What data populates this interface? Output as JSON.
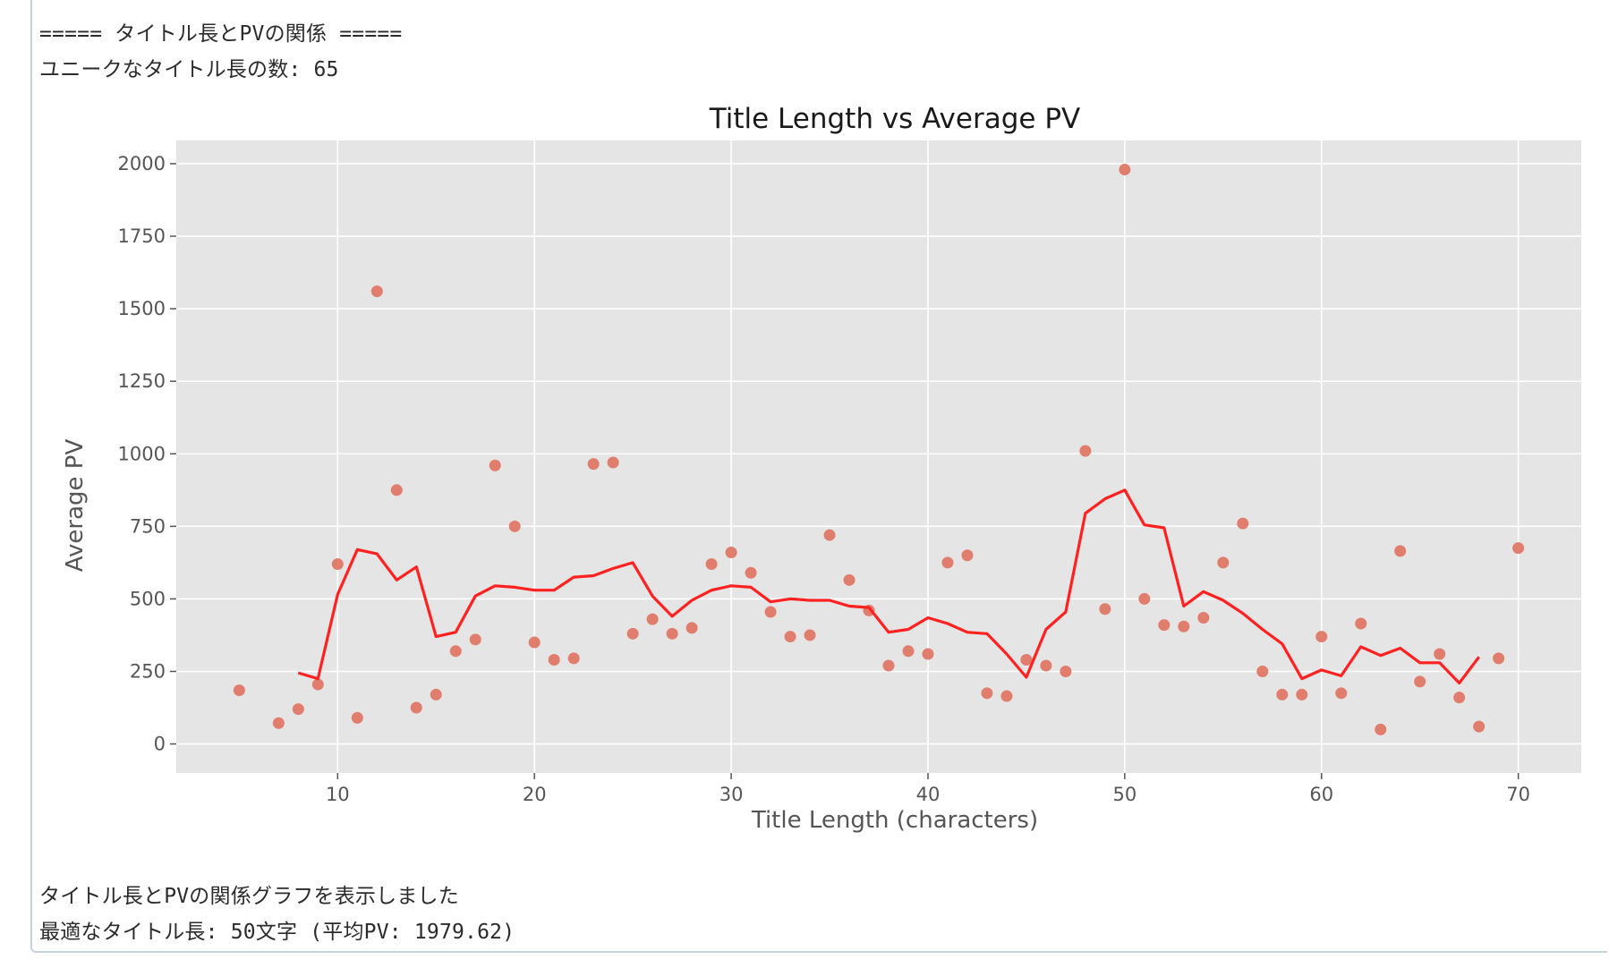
{
  "output": {
    "header_line": "===== タイトル長とPVの関係 =====",
    "unique_count_line": "ユニークなタイトル長の数: 65",
    "footer_line_1": "タイトル長とPVの関係グラフを表示しました",
    "footer_line_2": "最適なタイトル長: 50文字 (平均PV: 1979.62)"
  },
  "chart_data": {
    "type": "scatter",
    "title": "Title Length vs Average PV",
    "xlabel": "Title Length (characters)",
    "ylabel": "Average PV",
    "xlim": [
      1.8,
      73.2
    ],
    "ylim": [
      -100,
      2080
    ],
    "xticks": [
      10,
      20,
      30,
      40,
      50,
      60,
      70
    ],
    "yticks": [
      0,
      250,
      500,
      750,
      1000,
      1250,
      1500,
      1750,
      2000
    ],
    "grid": true,
    "colors": {
      "background": "#e5e5e5",
      "grid": "#ffffff",
      "scatter": "#e0715e",
      "line": "#ff2020"
    },
    "series": [
      {
        "kind": "scatter",
        "x": [
          5,
          7,
          8,
          9,
          10,
          11,
          12,
          13,
          14,
          15,
          16,
          17,
          18,
          19,
          20,
          21,
          22,
          23,
          24,
          25,
          26,
          27,
          28,
          29,
          30,
          31,
          32,
          33,
          34,
          35,
          36,
          37,
          38,
          39,
          40,
          41,
          42,
          43,
          44,
          45,
          46,
          47,
          48,
          49,
          50,
          51,
          52,
          53,
          54,
          55,
          56,
          57,
          58,
          59,
          60,
          61,
          62,
          63,
          64,
          65,
          66,
          67,
          68,
          69,
          70
        ],
        "y": [
          185,
          72,
          120,
          205,
          620,
          90,
          1560,
          875,
          125,
          170,
          320,
          360,
          960,
          750,
          350,
          290,
          295,
          965,
          970,
          380,
          430,
          380,
          400,
          620,
          660,
          590,
          455,
          370,
          375,
          720,
          565,
          460,
          270,
          320,
          310,
          625,
          650,
          175,
          165,
          290,
          270,
          250,
          1010,
          465,
          1979.62,
          500,
          410,
          405,
          435,
          625,
          760,
          250,
          170,
          170,
          370,
          175,
          415,
          50,
          665,
          215,
          310,
          160,
          60,
          295,
          675
        ]
      },
      {
        "kind": "line",
        "x": [
          8,
          9,
          10,
          11,
          12,
          13,
          14,
          15,
          16,
          17,
          18,
          19,
          20,
          21,
          22,
          23,
          24,
          25,
          26,
          27,
          28,
          29,
          30,
          31,
          32,
          33,
          34,
          35,
          36,
          37,
          38,
          39,
          40,
          41,
          42,
          43,
          44,
          45,
          46,
          47,
          48,
          49,
          50,
          51,
          52,
          53,
          54,
          55,
          56,
          57,
          58,
          59,
          60,
          61,
          62,
          63,
          64,
          65,
          66,
          67,
          68
        ],
        "y": [
          245,
          225,
          515,
          670,
          655,
          565,
          610,
          370,
          385,
          510,
          545,
          540,
          530,
          530,
          575,
          580,
          605,
          625,
          510,
          440,
          495,
          530,
          545,
          540,
          490,
          500,
          495,
          495,
          475,
          470,
          385,
          395,
          435,
          415,
          385,
          380,
          310,
          230,
          395,
          455,
          795,
          845,
          875,
          755,
          745,
          475,
          525,
          495,
          450,
          395,
          345,
          225,
          255,
          235,
          335,
          305,
          330,
          280,
          280,
          210,
          300
        ]
      }
    ]
  }
}
